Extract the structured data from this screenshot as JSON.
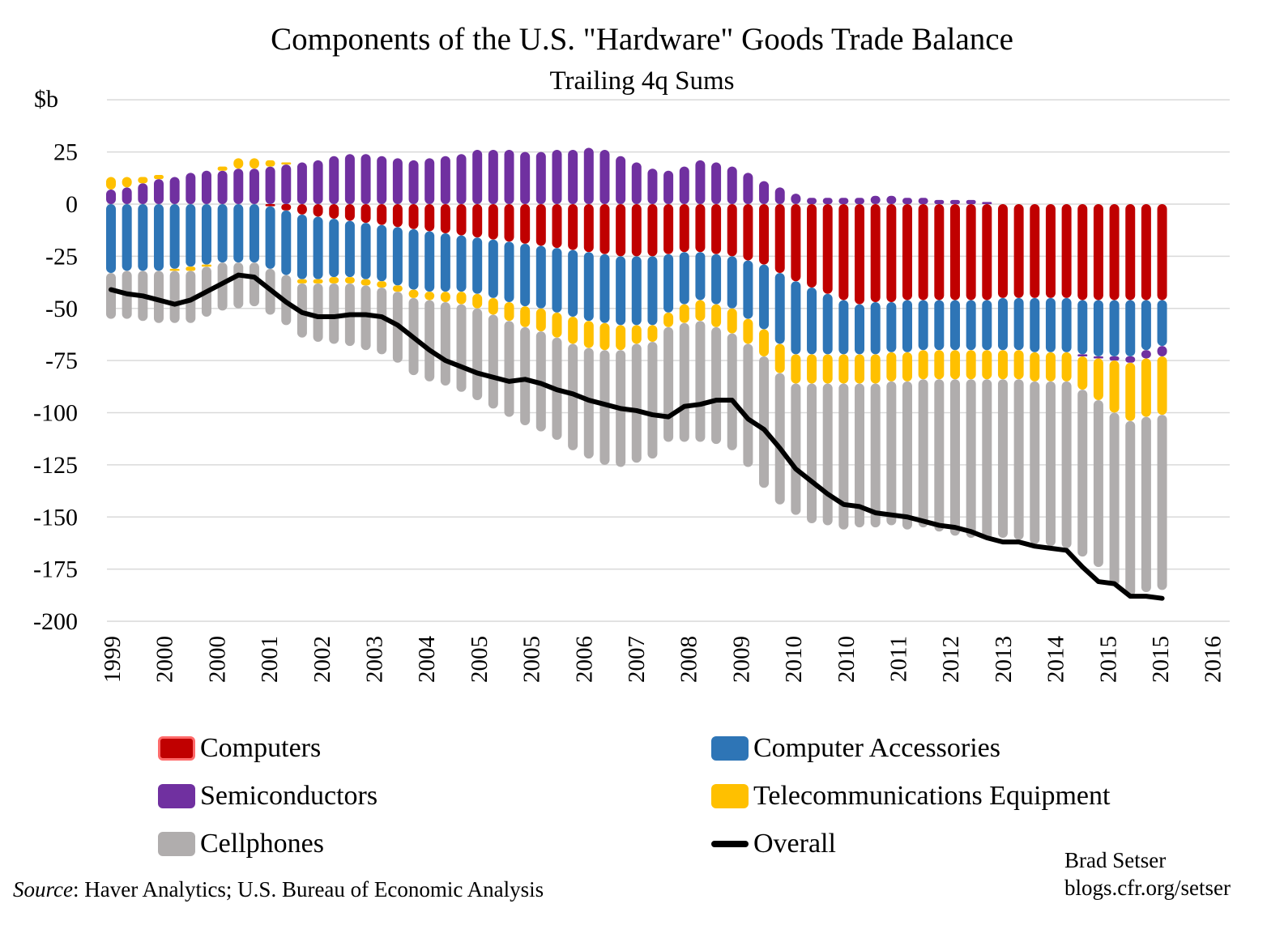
{
  "chart_data": {
    "type": "bar",
    "stacked": true,
    "title": "Components of the U.S. \"Hardware\" Goods Trade Balance",
    "subtitle": "Trailing 4q Sums",
    "ylabel": "$b",
    "xlabel": "",
    "ylim": [
      -200,
      50
    ],
    "yticks": [
      25,
      0,
      -25,
      -50,
      -75,
      -100,
      -125,
      -150,
      -175,
      -200
    ],
    "xtick_labels": [
      "1999",
      "2000",
      "2000",
      "2001",
      "2002",
      "2003",
      "2004",
      "2005",
      "2005",
      "2006",
      "2007",
      "2008",
      "2009",
      "2010",
      "2010",
      "2011",
      "2012",
      "2013",
      "2014",
      "2015",
      "2015",
      "2016"
    ],
    "grid": true,
    "legend_position": "bottom",
    "series_colors": {
      "Computers": "#c00000",
      "Computer Accessories": "#2e75b6",
      "Semiconductors": "#7030a0",
      "Telecommunications Equipment": "#ffc000",
      "Cellphones": "#b0adad",
      "Overall": "#000000"
    },
    "series": [
      {
        "name": "Computers",
        "values": [
          0,
          0,
          0,
          0,
          0,
          0,
          0,
          0,
          0,
          0,
          -1,
          -3,
          -5,
          -6,
          -7,
          -8,
          -9,
          -10,
          -11,
          -12,
          -13,
          -14,
          -15,
          -16,
          -17,
          -18,
          -19,
          -20,
          -21,
          -22,
          -23,
          -24,
          -25,
          -25,
          -25,
          -24,
          -23,
          -23,
          -24,
          -25,
          -27,
          -29,
          -33,
          -37,
          -40,
          -43,
          -46,
          -48,
          -47,
          -47,
          -46,
          -46,
          -46,
          -46,
          -46,
          -46,
          -45,
          -45,
          -45,
          -45,
          -45,
          -46,
          -46,
          -46,
          -46,
          -46,
          -46
        ]
      },
      {
        "name": "Computer Accessories",
        "values": [
          -33,
          -32,
          -32,
          -32,
          -31,
          -30,
          -29,
          -28,
          -28,
          -28,
          -30,
          -31,
          -31,
          -30,
          -28,
          -27,
          -27,
          -27,
          -28,
          -29,
          -29,
          -28,
          -27,
          -27,
          -28,
          -29,
          -30,
          -30,
          -31,
          -32,
          -33,
          -33,
          -33,
          -33,
          -33,
          -28,
          -25,
          -23,
          -24,
          -25,
          -28,
          -31,
          -34,
          -35,
          -32,
          -29,
          -26,
          -24,
          -25,
          -24,
          -25,
          -24,
          -24,
          -24,
          -24,
          -24,
          -25,
          -25,
          -26,
          -26,
          -26,
          -26,
          -27,
          -27,
          -27,
          -24,
          -22
        ]
      },
      {
        "name": "Semiconductors",
        "values": [
          7,
          8,
          10,
          12,
          13,
          15,
          16,
          16,
          17,
          17,
          18,
          19,
          20,
          21,
          23,
          24,
          24,
          23,
          22,
          21,
          22,
          23,
          24,
          26,
          26,
          26,
          25,
          25,
          26,
          26,
          27,
          26,
          23,
          20,
          17,
          16,
          18,
          21,
          20,
          18,
          15,
          11,
          8,
          5,
          3,
          3,
          3,
          3,
          4,
          4,
          3,
          3,
          2,
          2,
          2,
          1,
          0,
          0,
          0,
          0,
          0,
          -1,
          -1,
          -2,
          -3,
          -4,
          -5
        ]
      },
      {
        "name": "Telecommunications Equipment",
        "values": [
          6,
          5,
          3,
          2,
          -1,
          -2,
          -1,
          2,
          5,
          5,
          3,
          1,
          -2,
          -2,
          -3,
          -3,
          -3,
          -3,
          -3,
          -4,
          -4,
          -5,
          -6,
          -7,
          -8,
          -9,
          -10,
          -11,
          -12,
          -13,
          -13,
          -13,
          -12,
          -9,
          -8,
          -7,
          -9,
          -10,
          -11,
          -12,
          -12,
          -13,
          -14,
          -14,
          -14,
          -14,
          -14,
          -14,
          -14,
          -14,
          -14,
          -14,
          -14,
          -14,
          -14,
          -14,
          -14,
          -14,
          -14,
          -14,
          -14,
          -16,
          -20,
          -25,
          -28,
          -28,
          -28
        ]
      },
      {
        "name": "Cellphones",
        "values": [
          -22,
          -23,
          -24,
          -25,
          -25,
          -25,
          -24,
          -23,
          -22,
          -21,
          -22,
          -24,
          -26,
          -28,
          -29,
          -30,
          -31,
          -32,
          -34,
          -37,
          -39,
          -40,
          -42,
          -44,
          -45,
          -46,
          -47,
          -48,
          -49,
          -51,
          -53,
          -55,
          -56,
          -57,
          -56,
          -55,
          -57,
          -58,
          -56,
          -56,
          -59,
          -63,
          -63,
          -63,
          -67,
          -68,
          -70,
          -69,
          -69,
          -69,
          -71,
          -71,
          -73,
          -75,
          -76,
          -77,
          -76,
          -77,
          -78,
          -79,
          -80,
          -80,
          -80,
          -83,
          -84,
          -84,
          -84
        ]
      },
      {
        "name": "Overall",
        "type": "line",
        "values": [
          -41,
          -43,
          -44,
          -46,
          -48,
          -46,
          -42,
          -38,
          -34,
          -35,
          -41,
          -47,
          -52,
          -54,
          -54,
          -53,
          -53,
          -54,
          -58,
          -64,
          -70,
          -75,
          -78,
          -81,
          -83,
          -85,
          -84,
          -86,
          -89,
          -91,
          -94,
          -96,
          -98,
          -99,
          -101,
          -102,
          -97,
          -96,
          -94,
          -94,
          -103,
          -108,
          -117,
          -127,
          -133,
          -139,
          -144,
          -145,
          -148,
          -149,
          -150,
          -152,
          -154,
          -155,
          -157,
          -160,
          -162,
          -162,
          -164,
          -165,
          -166,
          -174,
          -181,
          -182,
          -188,
          -188,
          -189
        ]
      }
    ]
  },
  "legend": [
    {
      "label": "Computers",
      "color": "#c00000"
    },
    {
      "label": "Computer Accessories",
      "color": "#2e75b6"
    },
    {
      "label": "Semiconductors",
      "color": "#7030a0"
    },
    {
      "label": "Telecommunications Equipment",
      "color": "#ffc000"
    },
    {
      "label": "Cellphones",
      "color": "#b0adad"
    },
    {
      "label": "Overall",
      "color": "#000000"
    }
  ],
  "source": {
    "label": "Source",
    "text": ": Haver Analytics; U.S. Bureau of Economic Analysis"
  },
  "credit": {
    "name": "Brad Setser",
    "url": "blogs.cfr.org/setser"
  }
}
